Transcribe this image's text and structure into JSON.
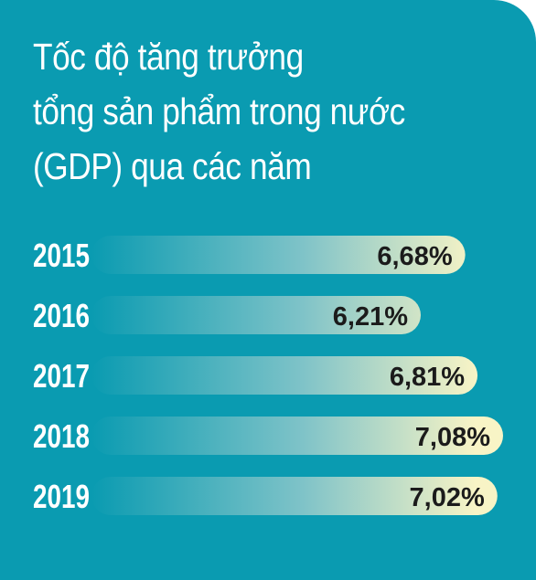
{
  "chart_data": {
    "type": "bar",
    "title_lines": [
      "Tốc độ tăng trưởng",
      "tổng sản phẩm trong nước",
      "(GDP) qua các năm"
    ],
    "categories": [
      "2015",
      "2016",
      "2017",
      "2018",
      "2019"
    ],
    "values": [
      6.68,
      6.21,
      6.81,
      7.08,
      7.02
    ],
    "value_labels": [
      "6,68%",
      "6,21%",
      "6,81%",
      "7,08%",
      "7,02%"
    ],
    "orientation": "horizontal",
    "grid": false,
    "legend": "none"
  },
  "colors": {
    "background": "#0a9bb1",
    "bar_start": "#0a9bb1",
    "bar_end": "#f8f4c6",
    "title_text": "#ffffff",
    "value_text": "#1b1b1b"
  }
}
